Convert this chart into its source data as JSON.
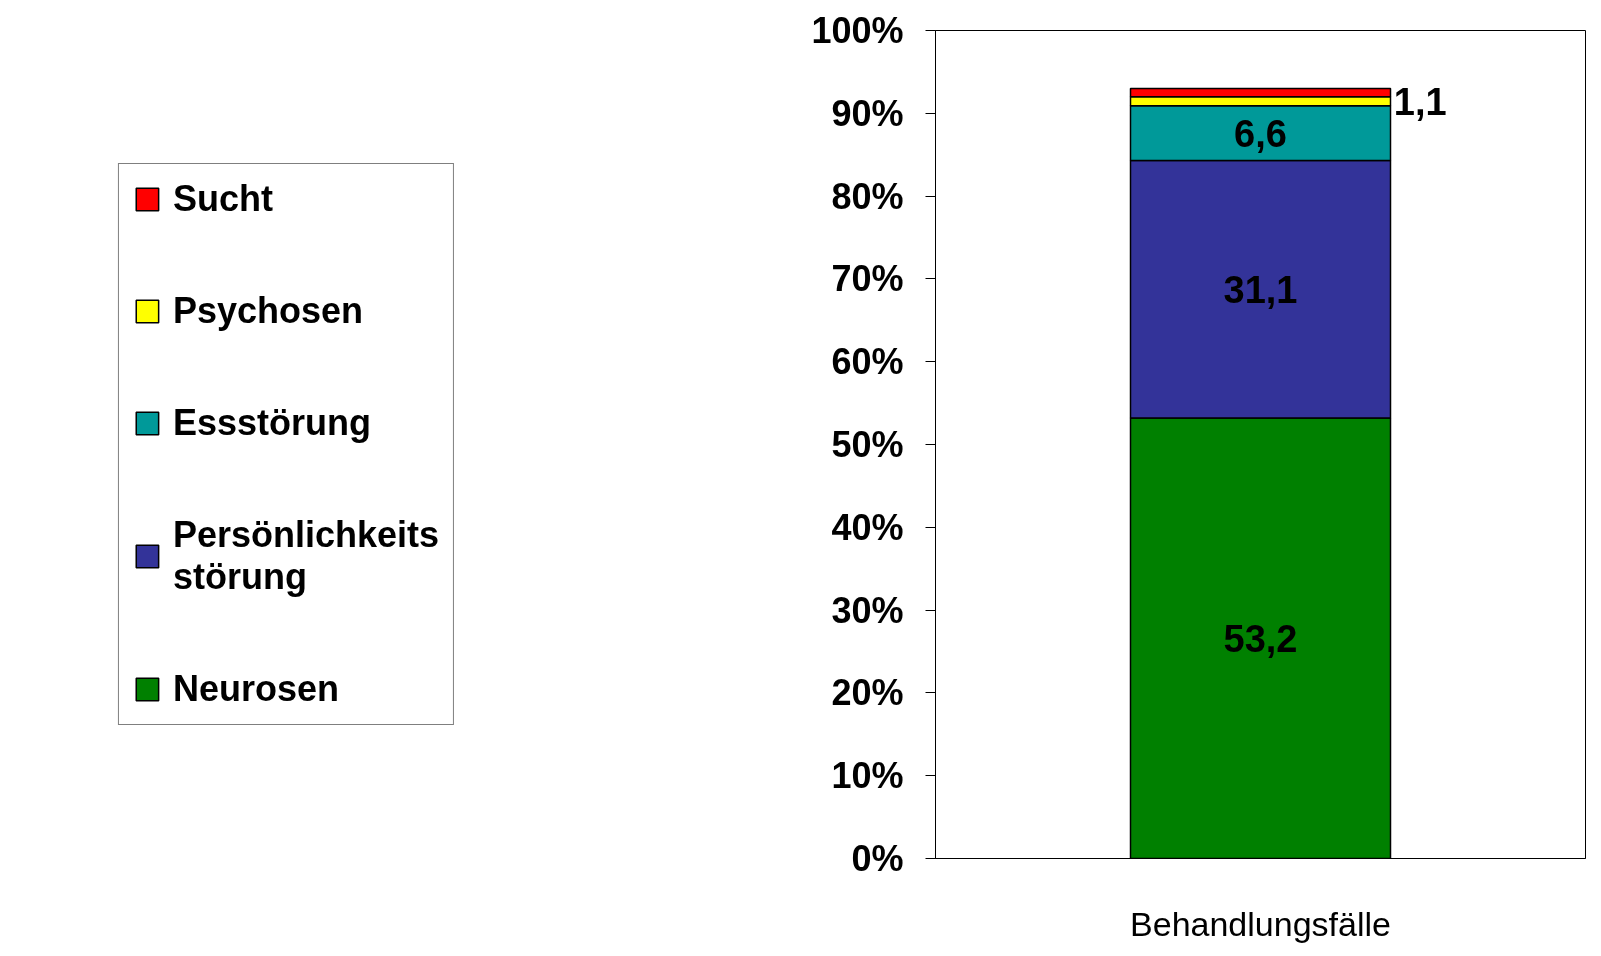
{
  "chart_data": {
    "type": "bar",
    "stacked": true,
    "categories": [
      "Behandlungsfälle"
    ],
    "series": [
      {
        "name": "Neurosen",
        "color": "#008000",
        "values": [
          53.2
        ],
        "value_labels": [
          "53,2"
        ]
      },
      {
        "name": "Persönlichkeits\nstörung",
        "color": "#333399",
        "values": [
          31.1
        ],
        "value_labels": [
          "31,1"
        ]
      },
      {
        "name": "Essstörung",
        "color": "#009999",
        "values": [
          6.6
        ],
        "value_labels": [
          "6,6"
        ]
      },
      {
        "name": "Psychosen",
        "color": "#ffff00",
        "values": [
          1.1
        ],
        "value_labels": [
          "1,1"
        ]
      },
      {
        "name": "Sucht",
        "color": "#ff0000",
        "values": [
          1.0
        ],
        "value_labels": [
          null
        ]
      }
    ],
    "ylim": [
      0,
      100
    ],
    "yticks": [
      {
        "value": 0,
        "label": "0%"
      },
      {
        "value": 10,
        "label": "10%"
      },
      {
        "value": 20,
        "label": "20%"
      },
      {
        "value": 30,
        "label": "30%"
      },
      {
        "value": 40,
        "label": "40%"
      },
      {
        "value": 50,
        "label": "50%"
      },
      {
        "value": 60,
        "label": "60%"
      },
      {
        "value": 70,
        "label": "70%"
      },
      {
        "value": 80,
        "label": "80%"
      },
      {
        "value": 90,
        "label": "90%"
      },
      {
        "value": 100,
        "label": "100%"
      }
    ],
    "grid": false,
    "legend": "left"
  }
}
